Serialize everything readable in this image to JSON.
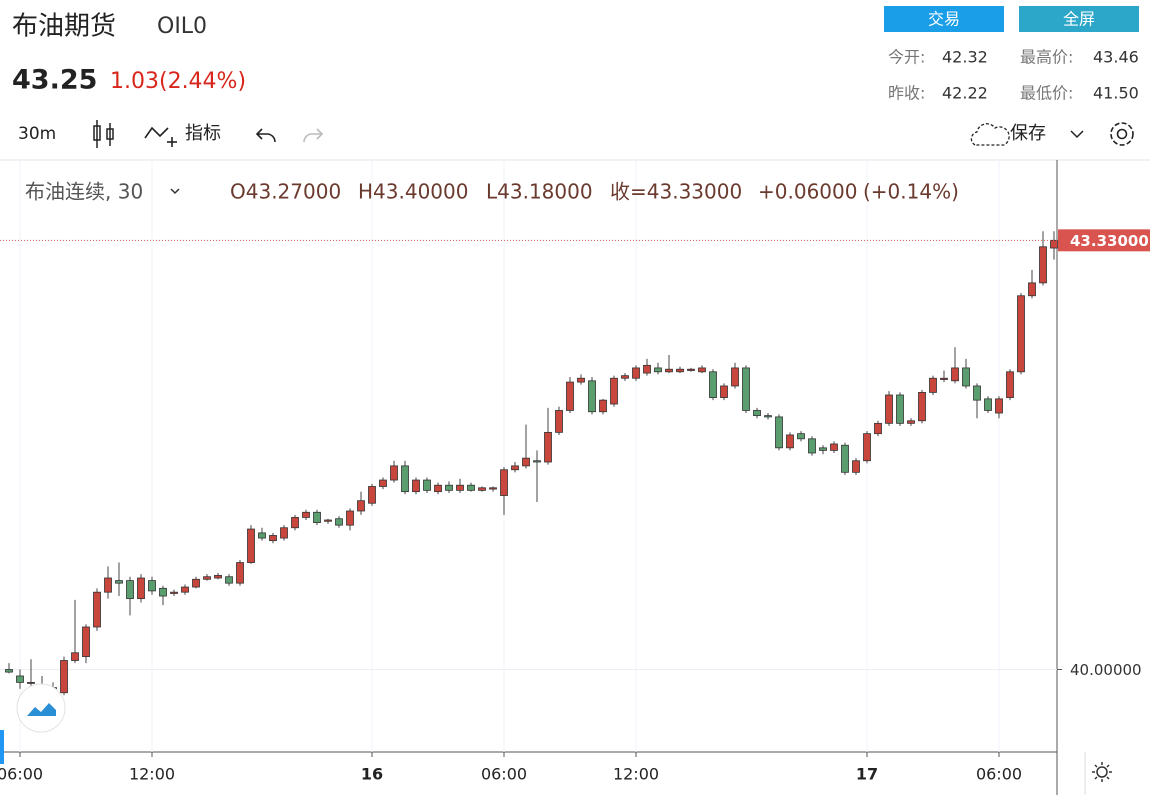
{
  "header": {
    "title": "布油期货",
    "code": "OIL0",
    "price": "43.25",
    "change": "1.03(2.44%)",
    "buttons": [
      "交易",
      "全屏"
    ],
    "stats": [
      {
        "label": "今开:",
        "value": "42.32"
      },
      {
        "label": "最高价:",
        "value": "43.46"
      },
      {
        "label": "昨收:",
        "value": "42.22"
      },
      {
        "label": "最低价:",
        "value": "41.50"
      }
    ]
  },
  "toolbar": {
    "interval": "30m",
    "indicators": "指标",
    "save": "保存"
  },
  "legend": {
    "symbol": "布油连续, 30",
    "open": "O43.27000",
    "high": "H43.40000",
    "low": "L43.18000",
    "close": "收=43.33000",
    "change": "+0.06000",
    "change_pct": "(+0.14%)"
  },
  "chart_data": {
    "type": "candlestick",
    "categories": [
      null,
      "06:00",
      null,
      null,
      null,
      null,
      null,
      null,
      null,
      null,
      null,
      null,
      null,
      "12:00",
      null,
      null,
      null,
      null,
      null,
      null,
      null,
      null,
      null,
      null,
      null,
      null,
      null,
      null,
      null,
      null,
      null,
      null,
      null,
      "16",
      null,
      null,
      null,
      null,
      null,
      null,
      null,
      null,
      null,
      null,
      null,
      "06:00",
      null,
      null,
      null,
      null,
      null,
      null,
      null,
      null,
      null,
      null,
      null,
      "12:00",
      null,
      null,
      null,
      null,
      null,
      null,
      null,
      null,
      null,
      null,
      null,
      null,
      null,
      null,
      null,
      null,
      null,
      null,
      null,
      null,
      "17",
      null,
      null,
      null,
      null,
      null,
      null,
      null,
      null,
      null,
      null,
      null,
      "06:00",
      null,
      null,
      null,
      null,
      null
    ],
    "open": [
      40.0,
      39.95,
      39.9,
      39.88,
      39.86,
      39.82,
      40.07,
      40.1,
      40.33,
      40.6,
      40.69,
      40.69,
      40.55,
      40.69,
      40.63,
      40.59,
      40.6,
      40.64,
      40.7,
      40.71,
      40.72,
      40.67,
      40.83,
      41.06,
      41.0,
      41.02,
      41.1,
      41.18,
      41.22,
      41.15,
      41.17,
      41.12,
      41.23,
      41.29,
      41.42,
      41.47,
      41.58,
      41.38,
      41.47,
      41.38,
      41.43,
      41.39,
      41.43,
      41.39,
      41.4,
      41.35,
      41.55,
      41.58,
      41.62,
      41.61,
      41.84,
      42.01,
      42.23,
      42.24,
      42.0,
      42.06,
      42.26,
      42.26,
      42.3,
      42.34,
      42.31,
      42.31,
      42.32,
      42.31,
      42.31,
      42.11,
      42.2,
      42.34,
      42.01,
      41.97,
      41.96,
      41.72,
      41.83,
      41.79,
      41.72,
      41.7,
      41.74,
      41.53,
      41.62,
      41.83,
      41.91,
      42.13,
      41.91,
      41.93,
      42.15,
      42.25,
      42.24,
      42.34,
      42.2,
      42.1,
      41.99,
      42.11,
      42.31,
      42.9,
      43.0,
      43.27
    ],
    "high": [
      40.05,
      40.0,
      40.08,
      39.95,
      39.9,
      40.1,
      40.54,
      40.35,
      40.63,
      40.8,
      40.83,
      40.72,
      40.74,
      40.72,
      40.65,
      40.62,
      40.66,
      40.72,
      40.74,
      40.75,
      40.74,
      40.85,
      41.12,
      41.1,
      41.06,
      41.12,
      41.2,
      41.24,
      41.24,
      41.17,
      41.19,
      41.25,
      41.38,
      41.44,
      41.49,
      41.62,
      41.62,
      41.49,
      41.49,
      41.45,
      41.46,
      41.48,
      41.45,
      41.42,
      41.42,
      41.57,
      41.61,
      41.9,
      41.7,
      42.03,
      42.04,
      42.27,
      42.29,
      42.27,
      42.1,
      42.28,
      42.3,
      42.36,
      42.41,
      42.38,
      42.44,
      42.35,
      42.34,
      42.36,
      42.33,
      42.22,
      42.38,
      42.36,
      42.03,
      41.99,
      41.98,
      41.84,
      41.85,
      41.81,
      41.74,
      41.77,
      41.76,
      41.64,
      41.85,
      41.93,
      42.16,
      42.15,
      41.95,
      42.17,
      42.28,
      42.32,
      42.5,
      42.41,
      42.22,
      42.12,
      42.12,
      42.33,
      42.92,
      43.1,
      43.4,
      43.4
    ],
    "low": [
      39.97,
      39.85,
      39.82,
      39.8,
      39.82,
      39.8,
      40.05,
      40.05,
      40.3,
      40.55,
      40.57,
      40.42,
      40.52,
      40.58,
      40.5,
      40.57,
      40.58,
      40.63,
      40.69,
      40.7,
      40.65,
      40.65,
      40.82,
      41.0,
      40.98,
      41.0,
      41.08,
      41.16,
      41.12,
      41.13,
      41.1,
      41.08,
      41.2,
      41.27,
      41.4,
      41.45,
      41.36,
      41.36,
      41.37,
      41.36,
      41.37,
      41.37,
      41.38,
      41.38,
      41.38,
      41.2,
      41.53,
      41.56,
      41.3,
      41.59,
      41.82,
      41.99,
      42.21,
      41.98,
      41.98,
      42.04,
      42.24,
      42.24,
      42.28,
      42.29,
      42.3,
      42.3,
      42.31,
      42.3,
      42.09,
      42.09,
      42.18,
      41.99,
      41.95,
      41.94,
      41.7,
      41.7,
      41.77,
      41.66,
      41.67,
      41.68,
      41.51,
      41.51,
      41.6,
      41.81,
      41.89,
      41.89,
      41.89,
      41.91,
      42.13,
      42.23,
      42.22,
      42.18,
      41.95,
      41.99,
      41.95,
      42.09,
      42.29,
      42.88,
      42.98,
      43.18
    ],
    "close": [
      39.98,
      39.9,
      39.9,
      39.87,
      39.85,
      40.07,
      40.13,
      40.33,
      40.6,
      40.71,
      40.67,
      40.55,
      40.71,
      40.61,
      40.57,
      40.6,
      40.64,
      40.7,
      40.72,
      40.73,
      40.67,
      40.83,
      41.09,
      41.02,
      41.04,
      41.1,
      41.18,
      41.22,
      41.14,
      41.16,
      41.12,
      41.23,
      41.31,
      41.42,
      41.47,
      41.58,
      41.38,
      41.47,
      41.39,
      41.43,
      41.39,
      41.43,
      41.39,
      41.41,
      41.41,
      41.55,
      41.58,
      41.64,
      41.61,
      41.84,
      42.01,
      42.23,
      42.26,
      42.0,
      42.09,
      42.26,
      42.28,
      42.34,
      42.36,
      42.31,
      42.33,
      42.33,
      42.33,
      42.34,
      42.11,
      42.2,
      42.34,
      42.01,
      41.97,
      41.96,
      41.72,
      41.82,
      41.79,
      41.68,
      41.7,
      41.75,
      41.53,
      41.62,
      41.83,
      41.91,
      42.13,
      41.91,
      41.93,
      42.15,
      42.26,
      42.26,
      42.34,
      42.2,
      42.09,
      42.01,
      42.1,
      42.31,
      42.9,
      43.0,
      43.28,
      43.33
    ],
    "up_color": "#c9463d",
    "down_color": "#5a9e6f",
    "ylim": [
      39.36,
      43.93
    ],
    "yticks": [
      {
        "value": 40,
        "label": "40.00000"
      }
    ],
    "last_price": {
      "value": 43.33,
      "label": "43.33000"
    },
    "grid": true
  }
}
